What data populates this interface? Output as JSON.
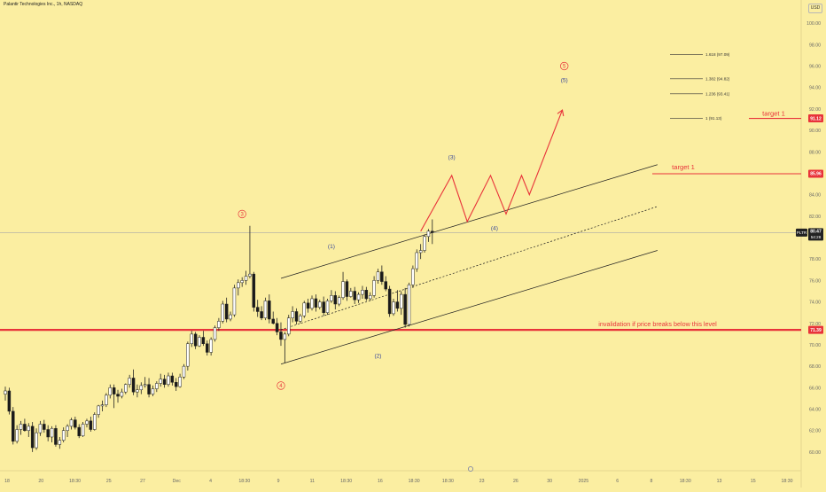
{
  "header": {
    "title": "Palantir Technologies Inc., 1h, NASDAQ"
  },
  "currency_button": "USD",
  "colors": {
    "background": "#fbeea1",
    "up": "#ffffff",
    "down": "#1a1a1a",
    "red": "#e8333a",
    "channel": "#222222",
    "wave_minor": "#3b4a9a",
    "axis_text": "#666666"
  },
  "chart_data": {
    "type": "candlestick",
    "title": "Palantir Technologies Inc., 1h, NASDAQ",
    "symbol": "PLTR",
    "currency": "USD",
    "last_price": {
      "value": 80.47,
      "label": "80.47",
      "countdown": "54:28"
    },
    "ylim": [
      59.0,
      101.5
    ],
    "y_ticks": [
      60,
      62,
      64,
      66,
      68,
      70,
      72,
      74,
      76,
      78,
      80,
      82,
      84,
      86,
      88,
      90,
      92,
      94,
      96,
      98,
      100
    ],
    "x_ticks": [
      "18",
      "20",
      "18:30",
      "25",
      "27",
      "Dec",
      "4",
      "18:30",
      "9",
      "11",
      "18:30",
      "16",
      "18:30",
      "18:30",
      "23",
      "26",
      "30",
      "2025",
      "6",
      "8",
      "18:30",
      "13",
      "15",
      "18:30"
    ],
    "price_tags": [
      {
        "value": 91.12,
        "label": "91.12",
        "level_label": "target 1"
      },
      {
        "value": 85.96,
        "label": "85.96",
        "level_label": "target 1"
      },
      {
        "value": 71.39,
        "label": "71.39",
        "level_label": "invalidation if price breaks below this level"
      }
    ],
    "fib_levels": [
      {
        "label": "1.618 (97.09)",
        "value": 97.09
      },
      {
        "label": "1.382 (94.82)",
        "value": 94.82
      },
      {
        "label": "1.236 (93.41)",
        "value": 93.41
      },
      {
        "label": "1 (91.13)",
        "value": 91.13
      }
    ],
    "wave_labels": [
      {
        "text": "3",
        "circled": true,
        "color": "red",
        "bar": 61,
        "price": 82.2
      },
      {
        "text": "4",
        "circled": true,
        "color": "red",
        "bar": 71,
        "price": 66.2
      },
      {
        "text": "5",
        "circled": true,
        "color": "red",
        "bar": 144,
        "price": 96.0
      },
      {
        "text": "(1)",
        "circled": false,
        "color": "blue",
        "bar": 84,
        "price": 79.2
      },
      {
        "text": "(2)",
        "circled": false,
        "color": "blue",
        "bar": 96,
        "price": 69.0
      },
      {
        "text": "(3)",
        "circled": false,
        "color": "blue",
        "bar": 115,
        "price": 87.5
      },
      {
        "text": "(4)",
        "circled": false,
        "color": "blue",
        "bar": 126,
        "price": 80.9
      },
      {
        "text": "(5)",
        "circled": false,
        "color": "blue",
        "bar": 144,
        "price": 94.7
      }
    ],
    "projection": [
      {
        "bar": 107,
        "price": 80.6
      },
      {
        "bar": 115,
        "price": 85.8
      },
      {
        "bar": 119,
        "price": 81.5
      },
      {
        "bar": 125,
        "price": 85.8
      },
      {
        "bar": 129,
        "price": 82.2
      },
      {
        "bar": 133,
        "price": 85.8
      },
      {
        "bar": 135,
        "price": 84.0
      },
      {
        "bar": 143.5,
        "price": 91.9
      }
    ],
    "channel": {
      "upper": [
        {
          "bar": 71,
          "price": 76.2
        },
        {
          "bar": 168,
          "price": 86.8
        }
      ],
      "middle": [
        {
          "bar": 71,
          "price": 71.4
        },
        {
          "bar": 168,
          "price": 82.9
        }
      ],
      "lower": [
        {
          "bar": 71,
          "price": 68.2
        },
        {
          "bar": 168,
          "price": 78.8
        }
      ]
    },
    "bar_count": 184,
    "bars": [
      [
        65.4,
        66.1,
        64.8,
        65.7
      ],
      [
        65.7,
        66.0,
        63.5,
        63.8
      ],
      [
        63.8,
        64.2,
        60.7,
        61.0
      ],
      [
        61.0,
        62.5,
        60.8,
        62.1
      ],
      [
        62.1,
        62.9,
        61.6,
        62.6
      ],
      [
        62.6,
        63.1,
        61.9,
        62.0
      ],
      [
        62.0,
        62.7,
        61.4,
        62.4
      ],
      [
        62.4,
        62.8,
        60.0,
        60.4
      ],
      [
        60.4,
        62.2,
        60.2,
        61.8
      ],
      [
        61.8,
        62.9,
        61.5,
        62.6
      ],
      [
        62.6,
        63.0,
        61.8,
        62.1
      ],
      [
        62.1,
        62.5,
        61.0,
        61.4
      ],
      [
        61.4,
        62.4,
        60.9,
        62.2
      ],
      [
        62.2,
        62.5,
        60.5,
        60.7
      ],
      [
        60.7,
        61.4,
        60.3,
        61.1
      ],
      [
        61.1,
        62.3,
        60.9,
        62.0
      ],
      [
        62.0,
        62.6,
        61.4,
        62.4
      ],
      [
        62.4,
        63.2,
        62.1,
        63.0
      ],
      [
        63.0,
        63.3,
        62.1,
        62.3
      ],
      [
        62.3,
        62.6,
        61.3,
        61.5
      ],
      [
        61.5,
        62.8,
        61.4,
        62.6
      ],
      [
        62.6,
        63.1,
        62.3,
        62.9
      ],
      [
        62.9,
        63.3,
        61.9,
        62.1
      ],
      [
        62.1,
        63.7,
        62.0,
        63.5
      ],
      [
        63.5,
        64.4,
        63.2,
        64.3
      ],
      [
        64.3,
        64.8,
        63.8,
        64.4
      ],
      [
        64.4,
        65.5,
        64.2,
        65.3
      ],
      [
        65.3,
        66.3,
        65.0,
        66.0
      ],
      [
        66.0,
        66.3,
        64.1,
        65.4
      ],
      [
        65.4,
        65.8,
        64.6,
        65.2
      ],
      [
        65.2,
        65.9,
        65.0,
        65.6
      ],
      [
        65.6,
        66.4,
        65.4,
        66.3
      ],
      [
        66.3,
        67.2,
        66.0,
        66.9
      ],
      [
        66.9,
        67.7,
        65.3,
        65.6
      ],
      [
        65.6,
        66.3,
        65.1,
        65.8
      ],
      [
        65.8,
        66.5,
        65.4,
        66.2
      ],
      [
        66.2,
        67.0,
        66.0,
        66.3
      ],
      [
        66.3,
        66.9,
        65.1,
        65.4
      ],
      [
        65.4,
        66.2,
        65.2,
        65.9
      ],
      [
        65.9,
        66.6,
        65.6,
        66.4
      ],
      [
        66.4,
        67.3,
        66.1,
        66.8
      ],
      [
        66.8,
        67.2,
        66.0,
        66.3
      ],
      [
        66.3,
        67.4,
        66.1,
        67.1
      ],
      [
        67.1,
        67.4,
        66.2,
        66.5
      ],
      [
        66.5,
        66.9,
        65.7,
        66.1
      ],
      [
        66.1,
        67.3,
        66.0,
        67.0
      ],
      [
        67.0,
        68.2,
        66.8,
        68.0
      ],
      [
        68.0,
        70.3,
        67.6,
        70.1
      ],
      [
        70.1,
        71.3,
        69.8,
        71.0
      ],
      [
        71.0,
        71.2,
        69.6,
        69.9
      ],
      [
        69.9,
        70.9,
        69.8,
        70.7
      ],
      [
        70.7,
        71.3,
        69.9,
        70.1
      ],
      [
        70.1,
        70.4,
        69.0,
        69.3
      ],
      [
        69.3,
        70.7,
        69.0,
        70.5
      ],
      [
        70.5,
        71.8,
        70.3,
        71.6
      ],
      [
        71.6,
        72.5,
        71.3,
        72.2
      ],
      [
        72.2,
        74.1,
        72.0,
        73.8
      ],
      [
        73.8,
        74.4,
        72.1,
        72.4
      ],
      [
        72.4,
        73.1,
        72.2,
        72.8
      ],
      [
        72.8,
        75.6,
        72.6,
        75.3
      ],
      [
        75.3,
        76.1,
        74.6,
        75.8
      ],
      [
        75.8,
        76.3,
        75.4,
        76.0
      ],
      [
        76.0,
        76.9,
        75.6,
        76.4
      ],
      [
        76.4,
        81.1,
        76.2,
        76.6
      ],
      [
        76.6,
        76.8,
        73.1,
        73.5
      ],
      [
        73.5,
        74.2,
        72.6,
        73.1
      ],
      [
        73.1,
        73.6,
        72.3,
        72.5
      ],
      [
        72.5,
        74.4,
        72.3,
        74.1
      ],
      [
        74.1,
        74.7,
        72.0,
        72.4
      ],
      [
        72.4,
        73.1,
        71.9,
        72.0
      ],
      [
        72.0,
        72.5,
        70.9,
        71.2
      ],
      [
        71.2,
        72.1,
        69.9,
        70.5
      ],
      [
        70.5,
        71.2,
        68.3,
        71.0
      ],
      [
        71.0,
        72.8,
        70.8,
        72.5
      ],
      [
        72.5,
        73.6,
        72.1,
        73.1
      ],
      [
        73.1,
        73.4,
        71.9,
        72.2
      ],
      [
        72.2,
        72.9,
        72.0,
        72.7
      ],
      [
        72.7,
        74.1,
        72.5,
        73.9
      ],
      [
        73.9,
        74.3,
        73.0,
        73.4
      ],
      [
        73.4,
        74.6,
        73.2,
        74.3
      ],
      [
        74.3,
        74.7,
        73.1,
        73.5
      ],
      [
        73.5,
        74.2,
        73.3,
        74.0
      ],
      [
        74.0,
        74.5,
        72.7,
        73.0
      ],
      [
        73.0,
        74.3,
        72.8,
        74.1
      ],
      [
        74.1,
        75.1,
        73.9,
        74.6
      ],
      [
        74.6,
        75.0,
        73.3,
        73.8
      ],
      [
        73.8,
        74.6,
        73.6,
        74.4
      ],
      [
        74.4,
        76.8,
        74.2,
        75.9
      ],
      [
        75.9,
        76.1,
        74.1,
        74.5
      ],
      [
        74.5,
        75.3,
        74.4,
        75.0
      ],
      [
        75.0,
        75.4,
        73.8,
        74.2
      ],
      [
        74.2,
        74.9,
        73.9,
        74.7
      ],
      [
        74.7,
        75.5,
        74.3,
        75.1
      ],
      [
        75.1,
        75.4,
        74.1,
        74.3
      ],
      [
        74.3,
        74.9,
        74.1,
        74.6
      ],
      [
        74.6,
        76.4,
        74.4,
        76.0
      ],
      [
        76.0,
        77.1,
        75.7,
        76.8
      ],
      [
        76.8,
        77.4,
        75.6,
        75.9
      ],
      [
        75.9,
        76.4,
        75.0,
        75.2
      ],
      [
        75.2,
        75.5,
        72.6,
        72.9
      ],
      [
        72.9,
        74.3,
        72.7,
        74.0
      ],
      [
        74.0,
        75.1,
        73.1,
        73.4
      ],
      [
        73.4,
        75.0,
        72.8,
        74.7
      ],
      [
        74.7,
        75.3,
        71.6,
        71.9
      ],
      [
        71.9,
        75.8,
        71.7,
        75.6
      ],
      [
        75.6,
        77.4,
        75.3,
        77.1
      ],
      [
        77.1,
        78.9,
        76.8,
        78.6
      ],
      [
        78.6,
        79.4,
        78.0,
        78.8
      ],
      [
        78.8,
        80.3,
        78.6,
        80.1
      ],
      [
        80.1,
        80.8,
        79.6,
        80.6
      ],
      [
        80.6,
        81.7,
        79.4,
        80.47
      ]
    ]
  }
}
